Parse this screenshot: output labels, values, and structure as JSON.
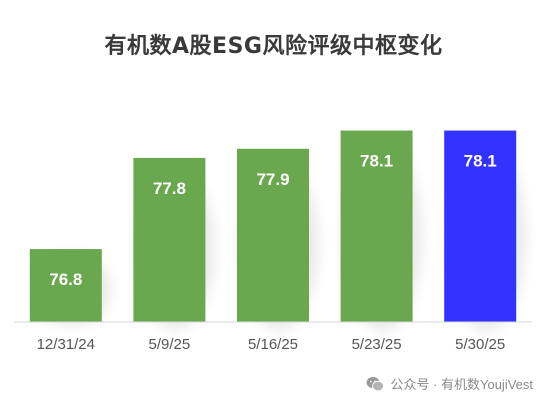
{
  "chart_data": {
    "type": "bar",
    "title": "有机数A股ESG风险评级中枢变化",
    "categories": [
      "12/31/24",
      "5/9/25",
      "5/16/25",
      "5/23/25",
      "5/30/25"
    ],
    "values": [
      76.8,
      77.8,
      77.9,
      78.1,
      78.1
    ],
    "value_labels": [
      "76.8",
      "77.8",
      "77.9",
      "78.1",
      "78.1"
    ],
    "colors": [
      "#6aa84f",
      "#6aa84f",
      "#6aa84f",
      "#6aa84f",
      "#3333ff"
    ],
    "xlabel": "",
    "ylabel": "",
    "ylim": [
      76.0,
      78.15
    ],
    "grid": false,
    "legend": "none"
  },
  "watermark": {
    "text": "公众号 · 有机数YoujiVest",
    "icon": "wechat-icon"
  }
}
